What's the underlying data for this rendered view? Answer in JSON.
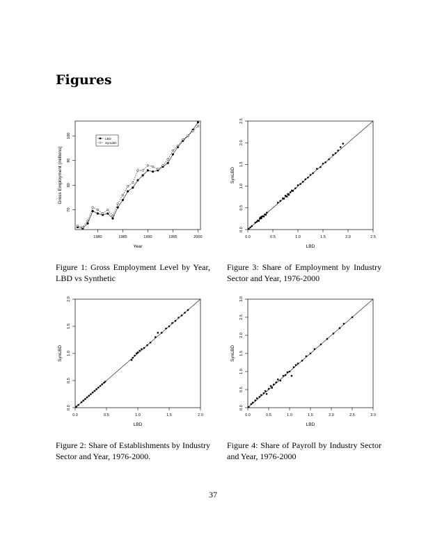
{
  "page": {
    "section_title": "Figures",
    "page_number": "37"
  },
  "figures": [
    {
      "caption": "Figure 1: Gross Employment Level by Year, LBD vs Synthetic"
    },
    {
      "caption": "Figure 3: Share of Employment by Industry Sector and Year, 1976-2000"
    },
    {
      "caption": "Figure 2: Share of Establishments by Industry Sector and Year, 1976-2000."
    },
    {
      "caption": "Figure 4: Share of Payroll by Industry Sector and Year, 1976-2000"
    }
  ],
  "chart_data": [
    {
      "type": "line",
      "xlabel": "Year",
      "ylabel": "Gross Employment (millions)",
      "xlim": [
        1975.5,
        2000.5
      ],
      "ylim": [
        62,
        106
      ],
      "xticks": [
        1980,
        1985,
        1990,
        1995,
        2000
      ],
      "yticks": [
        70,
        80,
        90,
        100
      ],
      "legend_position": "top-left",
      "x": [
        1976,
        1977,
        1978,
        1979,
        1980,
        1981,
        1982,
        1983,
        1984,
        1985,
        1986,
        1987,
        1988,
        1989,
        1990,
        1991,
        1992,
        1993,
        1994,
        1995,
        1996,
        1997,
        1998,
        1999,
        2000
      ],
      "series": [
        {
          "name": "LBD",
          "marker": "filled",
          "values": [
            63.0,
            62.5,
            64.5,
            69.5,
            68.5,
            68.0,
            68.5,
            66.5,
            71.0,
            74.0,
            77.5,
            79.0,
            82.0,
            84.0,
            86.0,
            85.5,
            86.0,
            87.5,
            89.0,
            92.5,
            95.5,
            98.0,
            100.0,
            102.5,
            105.5
          ]
        },
        {
          "name": "SynLBD",
          "marker": "open",
          "values": [
            63.5,
            63.0,
            65.5,
            71.0,
            70.0,
            68.5,
            70.0,
            67.5,
            72.5,
            76.0,
            79.5,
            81.0,
            86.0,
            86.0,
            88.0,
            87.5,
            86.5,
            88.0,
            90.5,
            94.0,
            96.0,
            98.5,
            100.0,
            102.0,
            104.0
          ]
        }
      ]
    },
    {
      "type": "scatter",
      "xlabel": "LBD",
      "ylabel": "SynLBD",
      "xlim": [
        0,
        2.5
      ],
      "ylim": [
        0,
        2.5
      ],
      "xticks": [
        0.0,
        0.5,
        1.0,
        1.5,
        2.0,
        2.5
      ],
      "yticks": [
        0.0,
        0.5,
        1.0,
        1.5,
        2.0,
        2.5
      ],
      "reference_line": "y = x",
      "points": [
        [
          0.02,
          0.02
        ],
        [
          0.05,
          0.05
        ],
        [
          0.08,
          0.08
        ],
        [
          0.15,
          0.16
        ],
        [
          0.18,
          0.18
        ],
        [
          0.2,
          0.21
        ],
        [
          0.22,
          0.2
        ],
        [
          0.24,
          0.25
        ],
        [
          0.25,
          0.28
        ],
        [
          0.27,
          0.26
        ],
        [
          0.28,
          0.3
        ],
        [
          0.3,
          0.31
        ],
        [
          0.32,
          0.3
        ],
        [
          0.34,
          0.35
        ],
        [
          0.36,
          0.34
        ],
        [
          0.38,
          0.39
        ],
        [
          0.6,
          0.62
        ],
        [
          0.65,
          0.66
        ],
        [
          0.7,
          0.72
        ],
        [
          0.72,
          0.71
        ],
        [
          0.75,
          0.78
        ],
        [
          0.78,
          0.76
        ],
        [
          0.8,
          0.82
        ],
        [
          0.82,
          0.8
        ],
        [
          0.85,
          0.86
        ],
        [
          0.88,
          0.9
        ],
        [
          0.9,
          0.89
        ],
        [
          0.95,
          0.95
        ],
        [
          1.0,
          1.02
        ],
        [
          1.05,
          1.05
        ],
        [
          1.1,
          1.1
        ],
        [
          1.15,
          1.16
        ],
        [
          1.2,
          1.2
        ],
        [
          1.25,
          1.26
        ],
        [
          1.3,
          1.3
        ],
        [
          1.38,
          1.4
        ],
        [
          1.45,
          1.44
        ],
        [
          1.5,
          1.52
        ],
        [
          1.55,
          1.55
        ],
        [
          1.62,
          1.62
        ],
        [
          1.7,
          1.72
        ],
        [
          1.75,
          1.76
        ],
        [
          1.8,
          1.82
        ],
        [
          1.85,
          1.9
        ],
        [
          1.9,
          1.98
        ]
      ]
    },
    {
      "type": "scatter",
      "xlabel": "LBD",
      "ylabel": "SynLBD",
      "xlim": [
        0,
        2.0
      ],
      "ylim": [
        0,
        2.0
      ],
      "xticks": [
        0.0,
        0.5,
        1.0,
        1.5,
        2.0
      ],
      "yticks": [
        0.0,
        0.5,
        1.0,
        1.5,
        2.0
      ],
      "reference_line": "y = x",
      "points": [
        [
          0.02,
          0.02
        ],
        [
          0.05,
          0.05
        ],
        [
          0.1,
          0.1
        ],
        [
          0.13,
          0.13
        ],
        [
          0.16,
          0.16
        ],
        [
          0.19,
          0.19
        ],
        [
          0.22,
          0.22
        ],
        [
          0.25,
          0.25
        ],
        [
          0.28,
          0.28
        ],
        [
          0.31,
          0.31
        ],
        [
          0.34,
          0.34
        ],
        [
          0.37,
          0.37
        ],
        [
          0.4,
          0.4
        ],
        [
          0.43,
          0.43
        ],
        [
          0.46,
          0.46
        ],
        [
          0.48,
          0.48
        ],
        [
          0.9,
          0.88
        ],
        [
          0.92,
          0.92
        ],
        [
          0.95,
          0.96
        ],
        [
          0.98,
          1.0
        ],
        [
          1.0,
          1.02
        ],
        [
          1.03,
          1.05
        ],
        [
          1.06,
          1.08
        ],
        [
          1.1,
          1.1
        ],
        [
          1.15,
          1.15
        ],
        [
          1.2,
          1.2
        ],
        [
          1.28,
          1.3
        ],
        [
          1.32,
          1.38
        ],
        [
          1.38,
          1.38
        ],
        [
          1.45,
          1.46
        ],
        [
          1.5,
          1.5
        ],
        [
          1.55,
          1.56
        ],
        [
          1.6,
          1.6
        ],
        [
          1.65,
          1.66
        ],
        [
          1.7,
          1.7
        ],
        [
          1.75,
          1.75
        ],
        [
          1.8,
          1.8
        ]
      ]
    },
    {
      "type": "scatter",
      "xlabel": "LBD",
      "ylabel": "SynLBD",
      "xlim": [
        0,
        3.0
      ],
      "ylim": [
        0,
        3.0
      ],
      "xticks": [
        0.0,
        0.5,
        1.0,
        1.5,
        2.0,
        2.5,
        3.0
      ],
      "yticks": [
        0.0,
        0.5,
        1.0,
        1.5,
        2.0,
        2.5,
        3.0
      ],
      "reference_line": "y = x",
      "points": [
        [
          0.02,
          0.02
        ],
        [
          0.08,
          0.1
        ],
        [
          0.12,
          0.14
        ],
        [
          0.18,
          0.2
        ],
        [
          0.22,
          0.26
        ],
        [
          0.28,
          0.3
        ],
        [
          0.32,
          0.35
        ],
        [
          0.38,
          0.4
        ],
        [
          0.42,
          0.46
        ],
        [
          0.45,
          0.38
        ],
        [
          0.5,
          0.52
        ],
        [
          0.55,
          0.6
        ],
        [
          0.58,
          0.55
        ],
        [
          0.62,
          0.64
        ],
        [
          0.68,
          0.7
        ],
        [
          0.72,
          0.78
        ],
        [
          0.78,
          0.75
        ],
        [
          0.85,
          0.88
        ],
        [
          0.9,
          0.9
        ],
        [
          0.95,
          0.98
        ],
        [
          1.0,
          1.0
        ],
        [
          1.05,
          0.88
        ],
        [
          1.1,
          1.12
        ],
        [
          1.15,
          1.18
        ],
        [
          1.2,
          1.22
        ],
        [
          1.3,
          1.3
        ],
        [
          1.4,
          1.42
        ],
        [
          1.5,
          1.5
        ],
        [
          1.6,
          1.62
        ],
        [
          1.75,
          1.75
        ],
        [
          1.9,
          1.9
        ],
        [
          2.05,
          2.05
        ],
        [
          2.2,
          2.2
        ],
        [
          2.3,
          2.32
        ],
        [
          2.5,
          2.5
        ]
      ]
    }
  ]
}
